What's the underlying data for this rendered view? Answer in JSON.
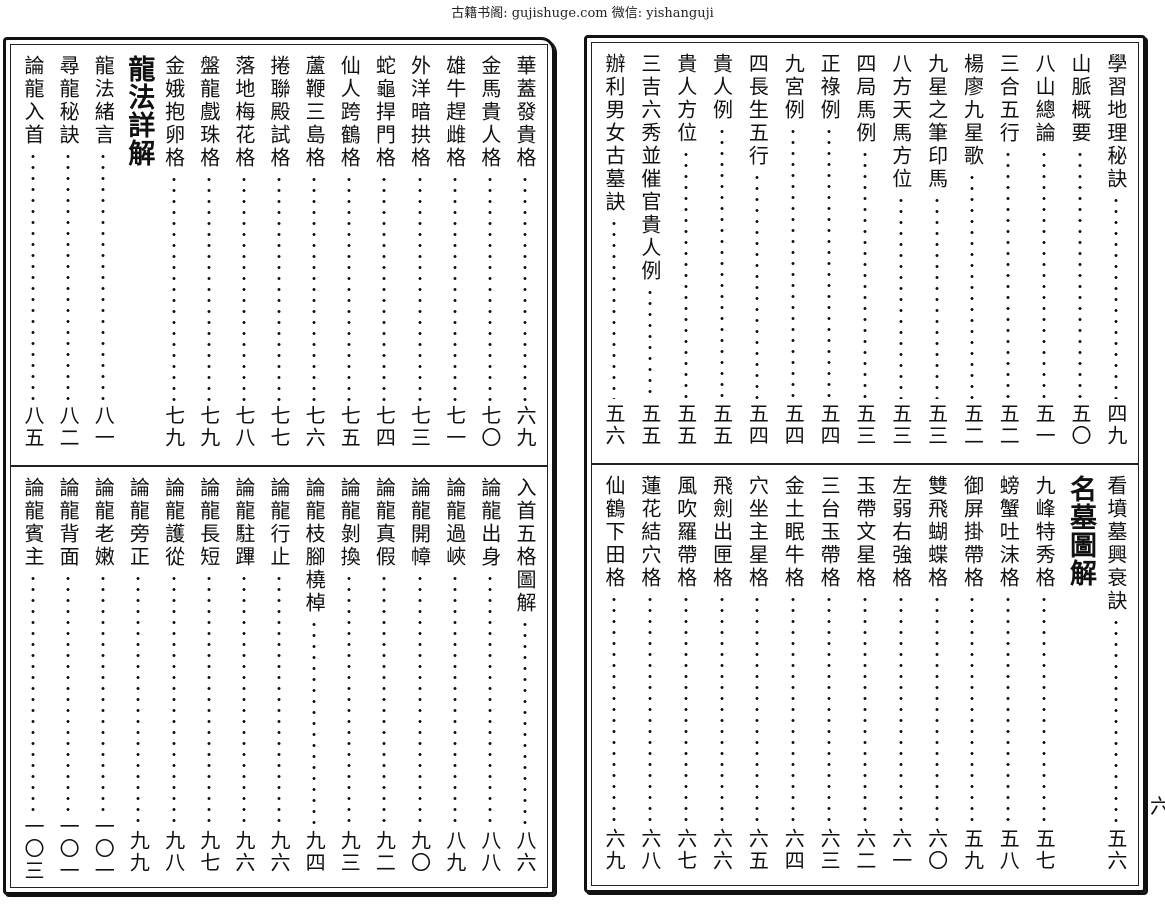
{
  "header": "古籍书阁: gujishuge.com 微信: yishanguji",
  "left_page": {
    "top": [
      {
        "title": "華蓋發貴格",
        "page": "六九"
      },
      {
        "title": "金馬貴人格",
        "page": "七〇"
      },
      {
        "title": "雄牛趕雌格",
        "page": "七一"
      },
      {
        "title": "外洋暗拱格",
        "page": "七三"
      },
      {
        "title": "蛇龜捍門格",
        "page": "七四"
      },
      {
        "title": "仙人跨鶴格",
        "page": "七五"
      },
      {
        "title": "蘆鞭三島格",
        "page": "七六"
      },
      {
        "title": "捲聯殿試格",
        "page": "七七"
      },
      {
        "title": "落地梅花格",
        "page": "七八"
      },
      {
        "title": "盤龍戲珠格",
        "page": "七九"
      },
      {
        "title": "金娥抱卵格",
        "page": "七九"
      },
      {
        "title": "龍法詳解",
        "page": "",
        "heading": true
      },
      {
        "title": "龍法緒言",
        "page": "八一"
      },
      {
        "title": "尋龍秘訣",
        "page": "八二"
      },
      {
        "title": "論龍入首",
        "page": "八五"
      }
    ],
    "bottom": [
      {
        "title": "入首五格圖解",
        "page": "八六"
      },
      {
        "title": "論龍出身",
        "page": "八八"
      },
      {
        "title": "論龍過峽",
        "page": "八九"
      },
      {
        "title": "論龍開幛",
        "page": "九〇"
      },
      {
        "title": "論龍真假",
        "page": "九二"
      },
      {
        "title": "論龍剝換",
        "page": "九三"
      },
      {
        "title": "論龍枝腳橈棹",
        "page": "九四"
      },
      {
        "title": "論龍行止",
        "page": "九六"
      },
      {
        "title": "論龍駐蹕",
        "page": "九六"
      },
      {
        "title": "論龍長短",
        "page": "九七"
      },
      {
        "title": "論龍護從",
        "page": "九八"
      },
      {
        "title": "論龍旁正",
        "page": "九九"
      },
      {
        "title": "論龍老嫩",
        "page": "一〇一"
      },
      {
        "title": "論龍背面",
        "page": "一〇一"
      },
      {
        "title": "論龍賓主",
        "page": "一〇三"
      }
    ]
  },
  "right_page": {
    "top": [
      {
        "title": "學習地理秘訣",
        "page": "四九"
      },
      {
        "title": "山脈概要",
        "page": "五〇"
      },
      {
        "title": "八山總論",
        "page": "五一"
      },
      {
        "title": "三合五行",
        "page": "五二"
      },
      {
        "title": "楊廖九星歌",
        "page": "五二"
      },
      {
        "title": "九星之筆印馬",
        "page": "五三"
      },
      {
        "title": "八方天馬方位",
        "page": "五三"
      },
      {
        "title": "四局馬例",
        "page": "五三"
      },
      {
        "title": "正祿例",
        "page": "五四"
      },
      {
        "title": "九宮例",
        "page": "五四"
      },
      {
        "title": "四長生五行",
        "page": "五四"
      },
      {
        "title": "貴人例",
        "page": "五五"
      },
      {
        "title": "貴人方位",
        "page": "五五"
      },
      {
        "title": "三吉六秀並催官貴人例",
        "page": "五五"
      },
      {
        "title": "辦利男女古墓訣",
        "page": "五六"
      }
    ],
    "bottom": [
      {
        "title": "看墳墓興衰訣",
        "page": "五六"
      },
      {
        "title": "名墓圖解",
        "page": "",
        "heading": true
      },
      {
        "title": "九峰特秀格",
        "page": "五七"
      },
      {
        "title": "螃蟹吐沫格",
        "page": "五八"
      },
      {
        "title": "御屏掛帶格",
        "page": "五九"
      },
      {
        "title": "雙飛蝴蝶格",
        "page": "六〇"
      },
      {
        "title": "左弱右強格",
        "page": "六一"
      },
      {
        "title": "玉帶文星格",
        "page": "六二"
      },
      {
        "title": "三台玉帶格",
        "page": "六三"
      },
      {
        "title": "金土眠牛格",
        "page": "六四"
      },
      {
        "title": "穴坐主星格",
        "page": "六五"
      },
      {
        "title": "飛劍出匣格",
        "page": "六六"
      },
      {
        "title": "風吹羅帶格",
        "page": "六七"
      },
      {
        "title": "蓮花結穴格",
        "page": "六八"
      },
      {
        "title": "仙鶴下田格",
        "page": "六九"
      }
    ]
  },
  "edge_mark": "六"
}
